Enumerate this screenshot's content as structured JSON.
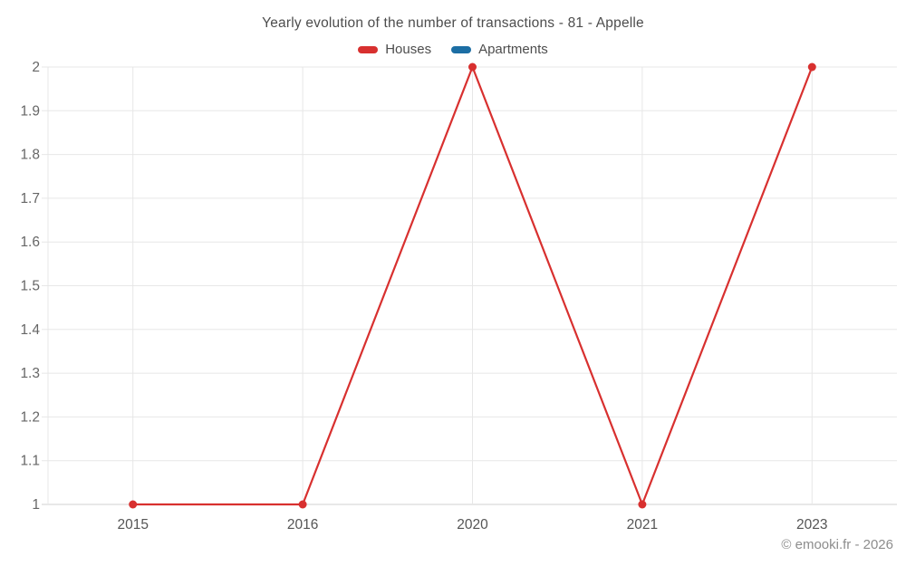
{
  "chart_data": {
    "type": "line",
    "title": "Yearly evolution of the number of transactions - 81 - Appelle",
    "categories": [
      "2015",
      "2016",
      "2020",
      "2021",
      "2023"
    ],
    "series": [
      {
        "name": "Houses",
        "color": "#d8302f",
        "values": [
          1,
          1,
          2,
          1,
          2
        ]
      },
      {
        "name": "Apartments",
        "color": "#1c6ea4",
        "values": []
      }
    ],
    "ylim": [
      1,
      2
    ],
    "ytick_step": 0.1,
    "ytick_labels": [
      "1",
      "1.1",
      "1.2",
      "1.3",
      "1.4",
      "1.5",
      "1.6",
      "1.7",
      "1.8",
      "1.9",
      "2"
    ],
    "xlabel": "",
    "ylabel": "",
    "grid": true,
    "legend_position": "top",
    "marker": "circle"
  },
  "footer": {
    "text": "© emooki.fr - 2026"
  },
  "colors": {
    "grid": "#e7e7e7",
    "axis_line": "#d2d2d2",
    "y_tick_label": "#666666",
    "x_tick_label": "#555555",
    "title": "#4d4d4d",
    "footer": "#8d8d8d"
  }
}
